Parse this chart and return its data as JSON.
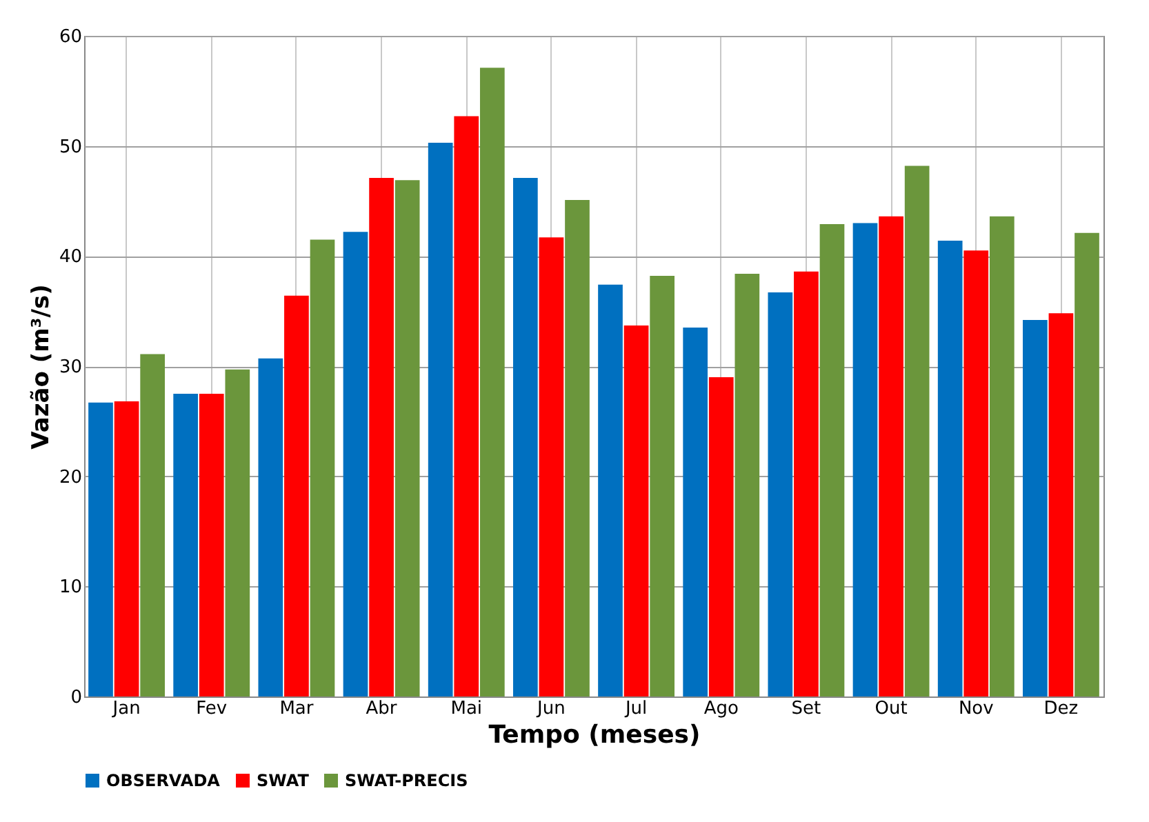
{
  "chart_data": {
    "type": "bar",
    "xlabel": "Tempo (meses)",
    "ylabel": "Vazão (m³/s)",
    "categories": [
      "Jan",
      "Fev",
      "Mar",
      "Abr",
      "Mai",
      "Jun",
      "Jul",
      "Ago",
      "Set",
      "Out",
      "Nov",
      "Dez"
    ],
    "series": [
      {
        "name": "OBSERVADA",
        "color": "#0070c0",
        "values": [
          26.7,
          27.5,
          30.7,
          42.2,
          50.3,
          47.1,
          37.4,
          33.5,
          36.7,
          43.0,
          41.4,
          34.2
        ]
      },
      {
        "name": "SWAT",
        "color": "#ff0000",
        "values": [
          26.8,
          27.5,
          36.4,
          47.1,
          52.7,
          41.7,
          33.7,
          29.0,
          38.6,
          43.6,
          40.5,
          34.8
        ]
      },
      {
        "name": "SWAT-PRECIS",
        "color": "#6b963c",
        "values": [
          31.1,
          29.7,
          41.5,
          46.9,
          57.1,
          45.1,
          38.2,
          38.4,
          42.9,
          48.2,
          43.6,
          42.1
        ]
      }
    ],
    "ylim": [
      0,
      60
    ],
    "yticks": [
      0,
      10,
      20,
      30,
      40,
      50,
      60
    ],
    "grid": true,
    "legend": "bottom"
  }
}
